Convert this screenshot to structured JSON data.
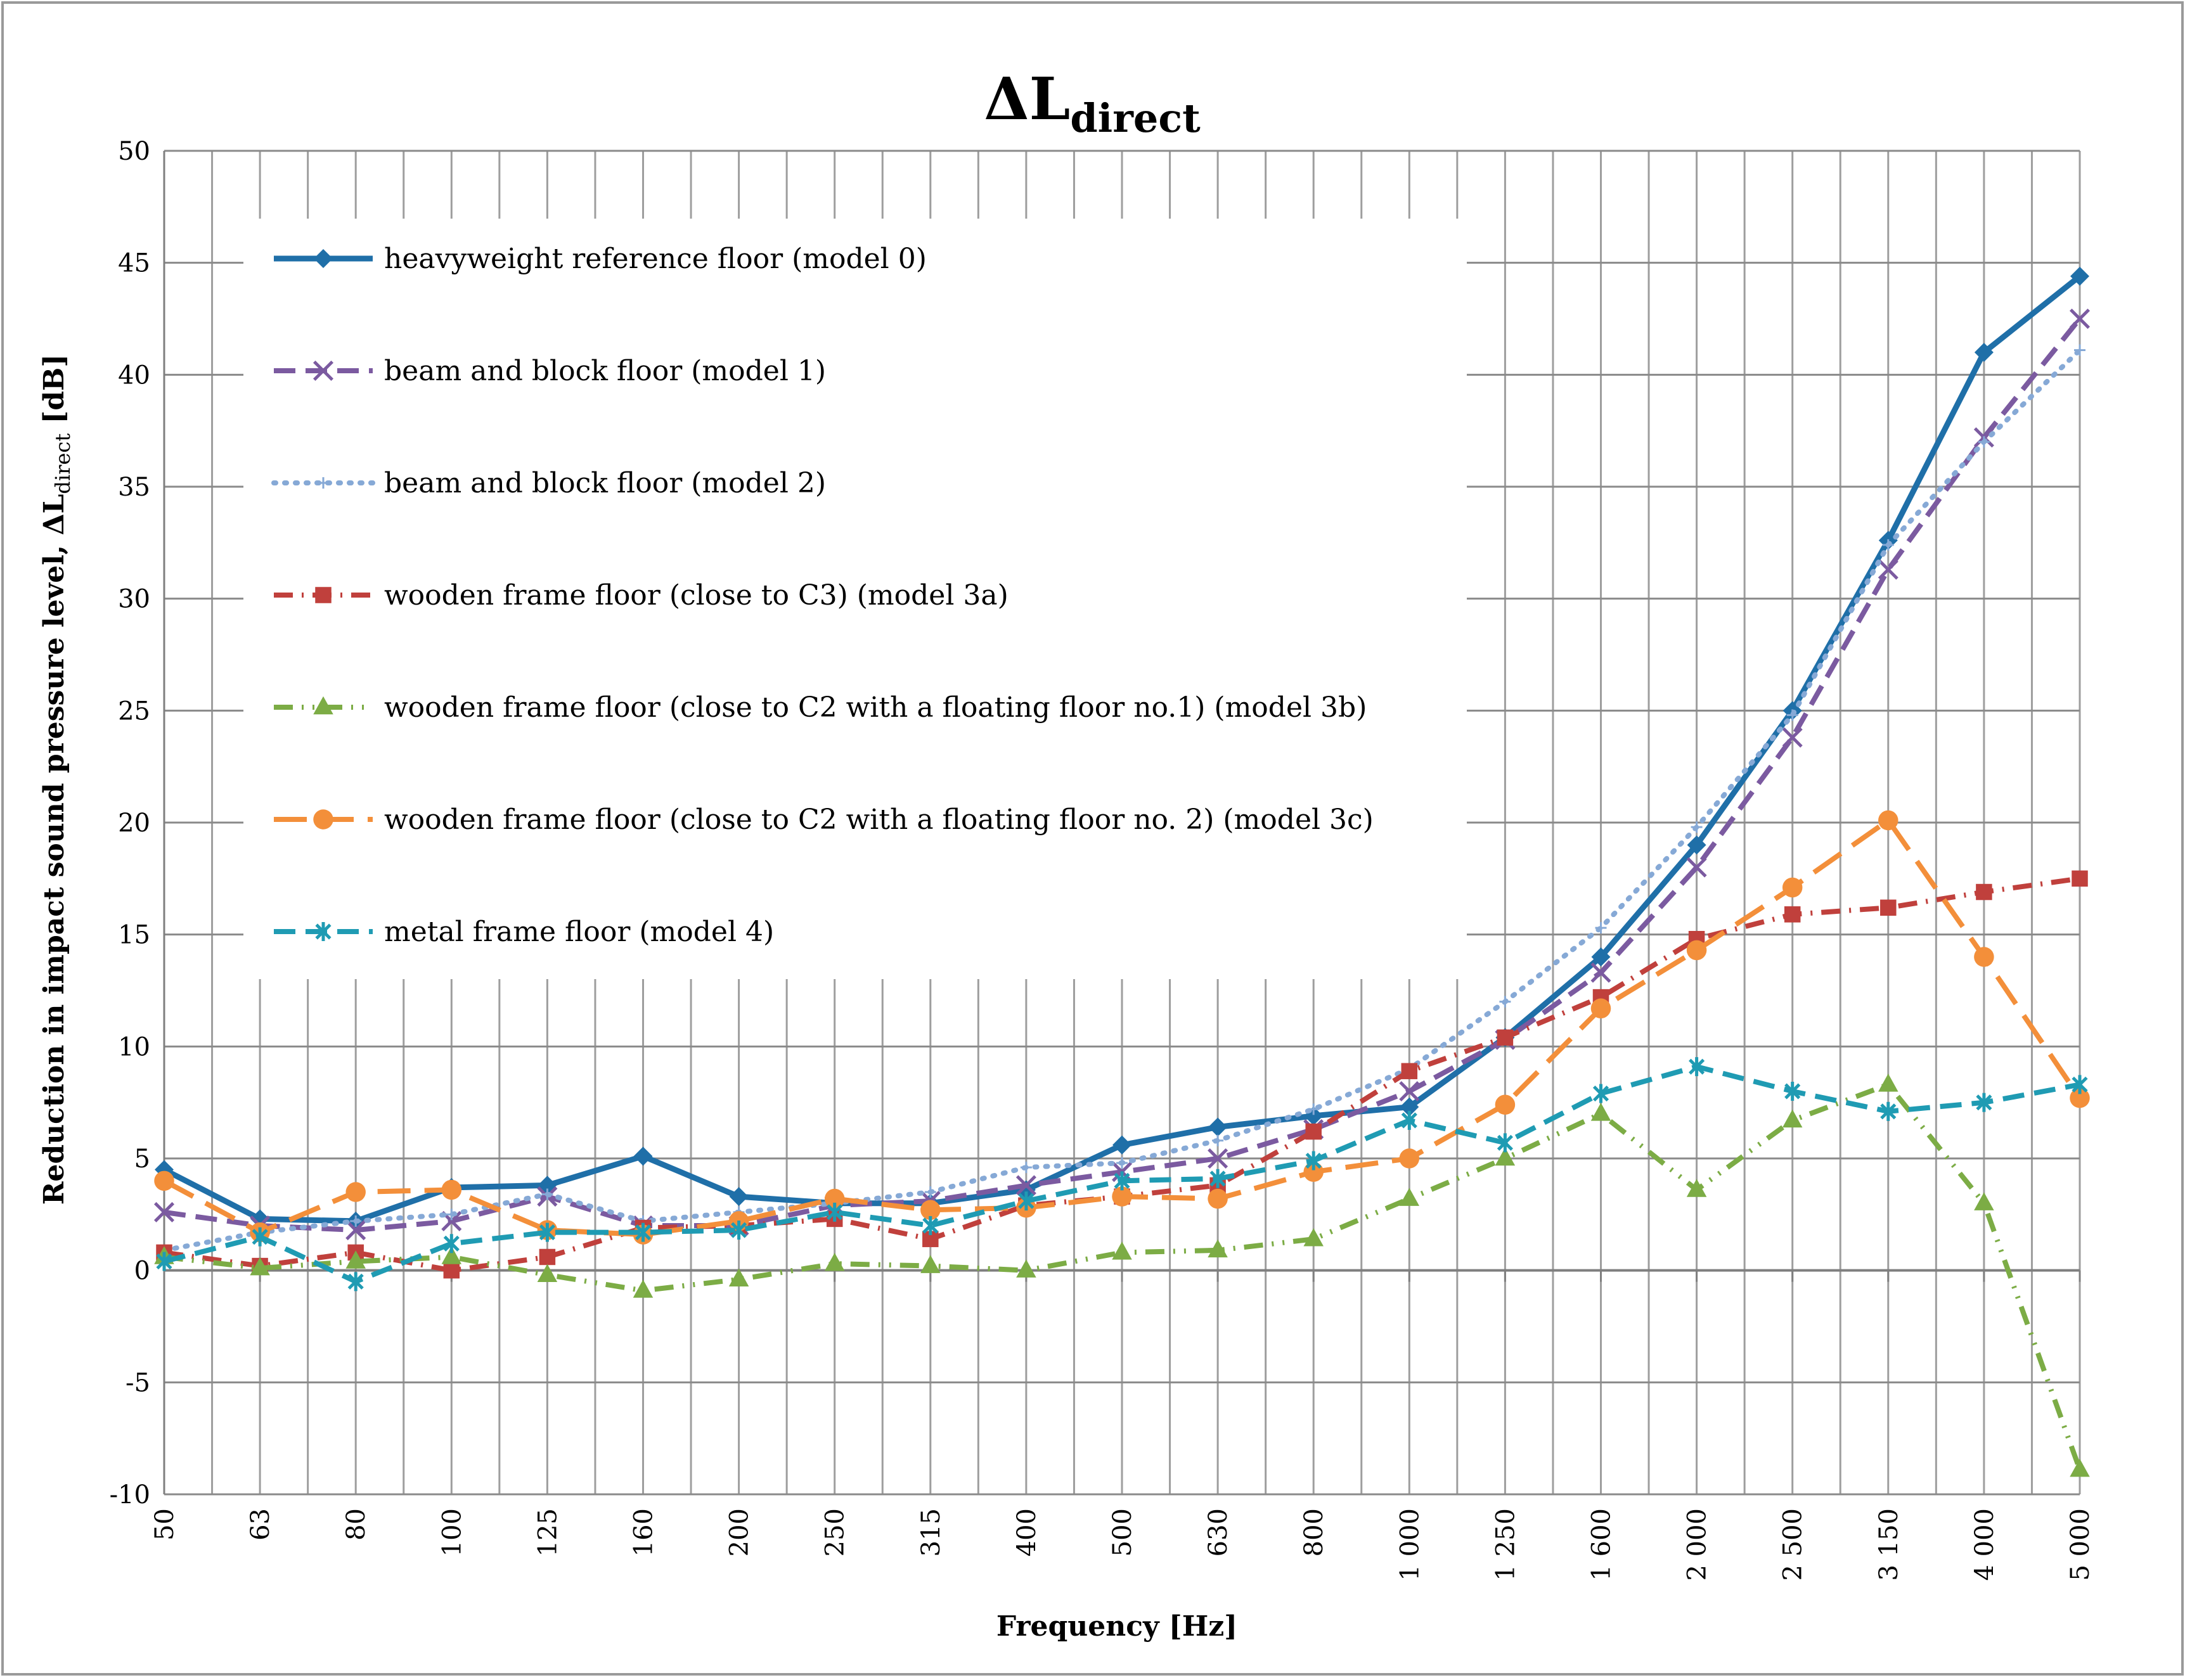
{
  "chart_data": {
    "type": "line",
    "title_main": "ΔL",
    "title_sub": "direct",
    "xlabel": "Frequency [Hz]",
    "ylabel_main": "Reduction in impact sound pressure level, ΔL",
    "ylabel_sub": "direct",
    "ylabel_unit": " [dB]",
    "ylim": [
      -10,
      50
    ],
    "yticks": [
      -10,
      -5,
      0,
      5,
      10,
      15,
      20,
      25,
      30,
      35,
      40,
      45,
      50
    ],
    "ytick_labels": [
      "-10",
      "-5",
      "0",
      "5",
      "10",
      "15",
      "20",
      "25",
      "30",
      "35",
      "40",
      "45",
      "50"
    ],
    "grid": true,
    "legend_position": "top-left",
    "categories": [
      "50",
      "63",
      "80",
      "100",
      "125",
      "160",
      "200",
      "250",
      "315",
      "400",
      "500",
      "630",
      "800",
      "1 000",
      "1 250",
      "1 600",
      "2 000",
      "2 500",
      "3 150",
      "4 000",
      "5 000"
    ],
    "series": [
      {
        "name": "heavyweight reference floor (model 0)",
        "color": "#1f6fa8",
        "marker": "diamond",
        "dash": "solid",
        "values": [
          4.5,
          2.3,
          2.2,
          3.7,
          3.8,
          5.1,
          3.3,
          3.0,
          3.0,
          3.6,
          5.6,
          6.4,
          6.9,
          7.3,
          10.4,
          14.0,
          19.0,
          25.0,
          32.6,
          41.0,
          44.4
        ]
      },
      {
        "name": "beam and block floor (model 1)",
        "color": "#7b5aa0",
        "marker": "x",
        "dash": "dash",
        "values": [
          2.6,
          2.0,
          1.8,
          2.2,
          3.3,
          2.0,
          2.0,
          2.9,
          3.1,
          3.8,
          4.4,
          5.0,
          6.3,
          8.0,
          10.3,
          13.3,
          18.0,
          23.8,
          31.3,
          37.2,
          42.5
        ]
      },
      {
        "name": "beam and block floor (model 2)",
        "color": "#86a9d6",
        "marker": "plus",
        "dash": "dot",
        "values": [
          0.9,
          1.7,
          2.2,
          2.5,
          3.4,
          2.2,
          2.6,
          3.0,
          3.5,
          4.6,
          4.8,
          5.8,
          7.2,
          9.0,
          12.0,
          15.3,
          19.8,
          24.8,
          32.4,
          37.0,
          41.1
        ]
      },
      {
        "name": "wooden frame floor (close to C3) (model 3a)",
        "color": "#c0403c",
        "marker": "square",
        "dash": "dashdot",
        "values": [
          0.8,
          0.2,
          0.8,
          0.0,
          0.6,
          1.9,
          2.0,
          2.3,
          1.4,
          2.9,
          3.3,
          3.8,
          6.2,
          8.9,
          10.4,
          12.2,
          14.8,
          15.9,
          16.2,
          16.9,
          17.5
        ]
      },
      {
        "name": "wooden frame floor (close to C2 with a floating floor no.1) (model 3b)",
        "color": "#7cac45",
        "marker": "triangle",
        "dash": "dashdotdot",
        "values": [
          0.6,
          0.1,
          0.4,
          0.6,
          -0.2,
          -0.9,
          -0.4,
          0.3,
          0.2,
          0.0,
          0.8,
          0.9,
          1.4,
          3.2,
          5.0,
          7.0,
          3.6,
          6.7,
          8.3,
          3.0,
          -8.9
        ]
      },
      {
        "name": "wooden frame floor (close to C2 with a floating floor no. 2) (model 3c)",
        "color": "#f38f3a",
        "marker": "circle",
        "dash": "longdash",
        "values": [
          4.0,
          1.7,
          3.5,
          3.6,
          1.8,
          1.6,
          2.2,
          3.2,
          2.7,
          2.8,
          3.3,
          3.2,
          4.4,
          5.0,
          7.4,
          11.7,
          14.3,
          17.1,
          20.1,
          14.0,
          7.7
        ]
      },
      {
        "name": "metal frame floor (model 4)",
        "color": "#1f9bb3",
        "marker": "star",
        "dash": "dash",
        "values": [
          0.4,
          1.5,
          -0.5,
          1.2,
          1.7,
          1.7,
          1.8,
          2.6,
          2.0,
          3.1,
          4.0,
          4.1,
          4.9,
          6.7,
          5.7,
          7.9,
          9.1,
          8.0,
          7.1,
          7.5,
          8.3
        ]
      }
    ]
  }
}
